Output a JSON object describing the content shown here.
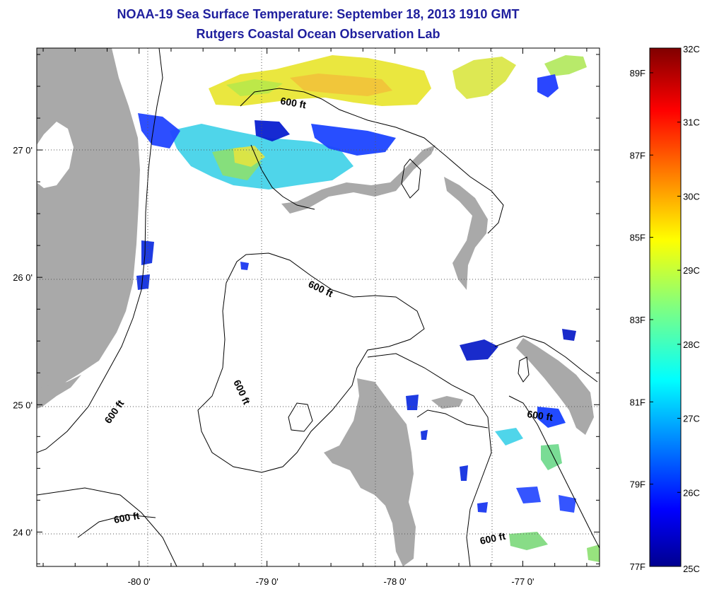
{
  "title": {
    "line1": "NOAA-19 Sea Surface Temperature:  September 18, 2013 1910 GMT",
    "line2": "Rutgers Coastal Ocean Observation Lab"
  },
  "axes": {
    "x_ticks": [
      {
        "lon": -80,
        "label": "-80 0'"
      },
      {
        "lon": -79,
        "label": "-79 0'"
      },
      {
        "lon": -78,
        "label": "-78 0'"
      },
      {
        "lon": -77,
        "label": "-77 0'"
      }
    ],
    "y_ticks": [
      {
        "lat": 27,
        "label": "27 0'"
      },
      {
        "lat": 26,
        "label": "26 0'"
      },
      {
        "lat": 25,
        "label": "25 0'"
      },
      {
        "lat": 24,
        "label": "24 0'"
      }
    ],
    "lon_range": [
      -80.8,
      -76.4
    ],
    "lat_range": [
      23.73,
      27.8
    ]
  },
  "contour_labels": {
    "label_a": "600 ft",
    "label_b": "600 ft",
    "label_c": "600 ft",
    "label_d": "600 ft",
    "label_e": "600 ft",
    "label_f": "600 ft",
    "label_g": "600 ft"
  },
  "colorbar": {
    "celsius": [
      {
        "value": 32,
        "label": "32C"
      },
      {
        "value": 31,
        "label": "31C"
      },
      {
        "value": 30,
        "label": "30C"
      },
      {
        "value": 29,
        "label": "29C"
      },
      {
        "value": 28,
        "label": "28C"
      },
      {
        "value": 27,
        "label": "27C"
      },
      {
        "value": 26,
        "label": "26C"
      },
      {
        "value": 25,
        "label": "25C"
      }
    ],
    "fahrenheit": [
      {
        "value": 89,
        "label": "89F"
      },
      {
        "value": 87,
        "label": "87F"
      },
      {
        "value": 85,
        "label": "85F"
      },
      {
        "value": 83,
        "label": "83F"
      },
      {
        "value": 81,
        "label": "81F"
      },
      {
        "value": 79,
        "label": "79F"
      },
      {
        "value": 77,
        "label": "77F"
      }
    ],
    "range_c": [
      25,
      32
    ],
    "colormap": "jet"
  },
  "colors": {
    "title": "#1f1f9e",
    "land": "#a9a9a9",
    "ocean": "#ffffff",
    "contour": "#000000",
    "grid": "#555555"
  }
}
